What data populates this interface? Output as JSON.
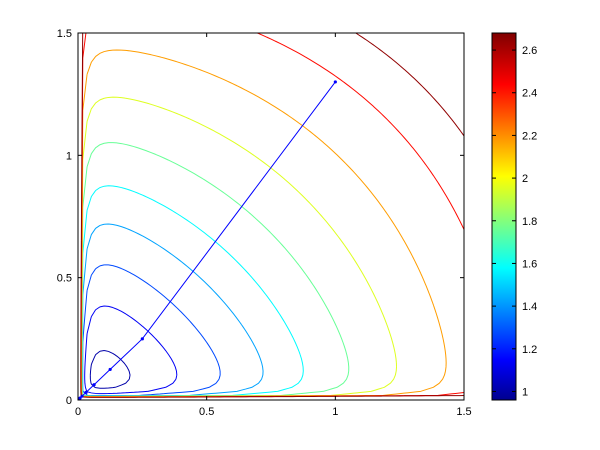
{
  "chart_data": {
    "type": "contour",
    "x_ticks": [
      "0",
      "0.5",
      "1",
      "1.5"
    ],
    "y_ticks": [
      "0",
      "0.5",
      "1",
      "1.5"
    ],
    "xlim": [
      0,
      1.5
    ],
    "ylim": [
      0,
      1.5
    ],
    "colorbar": {
      "range": [
        0.96,
        2.68
      ],
      "ticks": [
        "1",
        "1.2",
        "1.4",
        "1.6",
        "1.8",
        "2",
        "2.2",
        "2.4",
        "2.6"
      ],
      "colormap": "jet"
    },
    "contour_levels": [
      1.03,
      1.16,
      1.3,
      1.45,
      1.6,
      1.78,
      1.98,
      2.2,
      2.45,
      2.65
    ],
    "path": {
      "color": "#0000ff",
      "points": [
        [
          1.0,
          1.3
        ],
        [
          0.25,
          0.25
        ],
        [
          0.125,
          0.125
        ],
        [
          0.0625,
          0.0625
        ],
        [
          0.03125,
          0.03125
        ],
        [
          0.0156,
          0.0156
        ],
        [
          0.0078,
          0.0078
        ],
        [
          0.0039,
          0.0039
        ],
        [
          0.002,
          0.002
        ],
        [
          0.0,
          0.0
        ]
      ]
    },
    "grid": false,
    "legend": "none"
  }
}
